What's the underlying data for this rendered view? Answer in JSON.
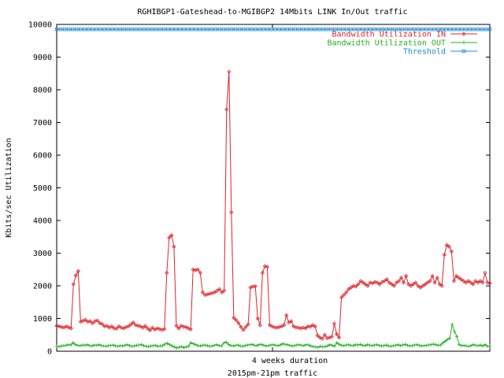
{
  "chart_data": {
    "type": "line",
    "title": "RGHIBGP1-Gateshead-to-MGIBGP2 14Mbits LINK In/Out traffic",
    "ylabel": "Kbits/sec Utilization",
    "xlabel": "4 weeks duration",
    "xlabel2": "2015pm-21pm traffic",
    "ylim": [
      0,
      10000
    ],
    "yticks": [
      "0",
      "1000",
      "2000",
      "3000",
      "4000",
      "5000",
      "6000",
      "7000",
      "8000",
      "9000",
      "10000"
    ],
    "grid": false,
    "legend_position": "top-right",
    "series": [
      {
        "name": "Bandwidth Utilization IN",
        "color": "#e0232b",
        "marker": "diamond",
        "values": [
          780,
          760,
          740,
          720,
          760,
          730,
          700,
          2050,
          2320,
          2450,
          900,
          930,
          960,
          900,
          920,
          850,
          920,
          940,
          860,
          830,
          760,
          780,
          720,
          760,
          700,
          690,
          760,
          720,
          700,
          740,
          760,
          820,
          880,
          800,
          780,
          760,
          720,
          770,
          700,
          640,
          720,
          660,
          700,
          680,
          650,
          680,
          2400,
          3480,
          3550,
          3200,
          780,
          700,
          780,
          750,
          740,
          700,
          670,
          2500,
          2480,
          2500,
          2400,
          1800,
          1720,
          1740,
          1760,
          1780,
          1800,
          1850,
          1900,
          1800,
          1850,
          7400,
          8550,
          4250,
          1020,
          950,
          860,
          740,
          650,
          740,
          820,
          1950,
          1980,
          1990,
          1000,
          790,
          2400,
          2600,
          2580,
          800,
          760,
          730,
          720,
          740,
          760,
          800,
          1100,
          880,
          920,
          760,
          730,
          720,
          700,
          720,
          700,
          760,
          750,
          800,
          760,
          480,
          420,
          380,
          500,
          400,
          420,
          440,
          850,
          520,
          420,
          1650,
          1720,
          1800,
          1900,
          1950,
          2000,
          1980,
          2050,
          2150,
          2100,
          2050,
          2000,
          2100,
          2080,
          2120,
          2100,
          2050,
          2120,
          2150,
          2200,
          2100,
          2050,
          2000,
          2100,
          2150,
          2250,
          2100,
          2300,
          2050,
          2000,
          2050,
          2100,
          2000,
          1950,
          2000,
          2050,
          2100,
          2150,
          2300,
          2100,
          2250,
          2050,
          2000,
          2950,
          3250,
          3200,
          3050,
          2150,
          2300,
          2250,
          2200,
          2150,
          2100,
          2150,
          2100,
          2050,
          2150,
          2100,
          2150,
          2100,
          2400,
          2100,
          2080
        ]
      },
      {
        "name": "Bandwidth Utilization OUT",
        "color": "#22b022",
        "marker": "plus",
        "values": [
          150,
          140,
          160,
          170,
          180,
          200,
          190,
          260,
          200,
          180,
          170,
          190,
          180,
          200,
          170,
          160,
          190,
          180,
          200,
          170,
          160,
          150,
          170,
          180,
          190,
          160,
          150,
          170,
          160,
          180,
          200,
          170,
          150,
          160,
          180,
          190,
          200,
          170,
          150,
          140,
          160,
          170,
          180,
          150,
          160,
          170,
          220,
          240,
          200,
          160,
          130,
          100,
          120,
          140,
          110,
          130,
          150,
          260,
          230,
          200,
          170,
          160,
          180,
          190,
          170,
          150,
          160,
          180,
          200,
          170,
          160,
          250,
          280,
          210,
          170,
          160,
          180,
          190,
          160,
          150,
          170,
          190,
          200,
          210,
          180,
          170,
          200,
          210,
          180,
          160,
          170,
          190,
          200,
          180,
          170,
          190,
          230,
          210,
          200,
          180,
          160,
          170,
          190,
          200,
          180,
          170,
          200,
          190,
          160,
          140,
          130,
          120,
          150,
          130,
          140,
          160,
          200,
          180,
          150,
          260,
          210,
          180,
          170,
          190,
          200,
          180,
          170,
          200,
          190,
          210,
          180,
          170,
          200,
          180,
          170,
          190,
          200,
          180,
          160,
          170,
          190,
          160,
          150,
          170,
          180,
          200,
          170,
          190,
          210,
          180,
          160,
          170,
          190,
          200,
          180,
          160,
          170,
          180,
          190,
          200,
          220,
          200,
          180,
          190,
          250,
          300,
          360,
          400,
          820,
          600,
          450,
          200,
          170,
          180,
          160,
          150,
          170,
          200,
          180,
          170,
          190,
          160,
          200,
          150,
          160
        ]
      },
      {
        "name": "Threshold",
        "color": "#1e8bd8",
        "marker": "square",
        "constant": 9850
      }
    ]
  }
}
